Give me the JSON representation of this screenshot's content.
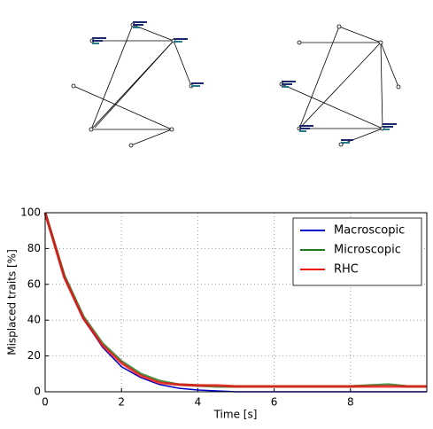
{
  "chart_data": {
    "type": "line",
    "x": [
      0,
      0.5,
      1,
      1.5,
      2,
      2.5,
      3,
      3.5,
      4,
      4.5,
      5,
      5.5,
      6,
      6.5,
      7,
      7.5,
      8,
      8.5,
      9,
      9.5,
      10
    ],
    "series": [
      {
        "name": "Macroscopic",
        "color": "#0000cc",
        "values": [
          100,
          64,
          41,
          25,
          14,
          8,
          4,
          2,
          1,
          0.5,
          0,
          0,
          0,
          0,
          0,
          0,
          0,
          0,
          0,
          0,
          0
        ]
      },
      {
        "name": "Microscopic",
        "color": "#1e7b1e",
        "values": [
          100,
          65,
          42,
          27,
          17,
          10,
          6,
          4,
          3.5,
          3,
          3,
          3,
          3,
          3,
          3,
          3,
          3,
          3.5,
          4,
          3,
          3
        ]
      },
      {
        "name": "RHC",
        "color": "#ee1111",
        "values": [
          100,
          64,
          41,
          26,
          16,
          9,
          5,
          4,
          3.5,
          3.5,
          3,
          3,
          3,
          3,
          3,
          3,
          3,
          3,
          3,
          3,
          3
        ]
      }
    ],
    "xlabel": "Time [s]",
    "ylabel": "Misplaced traits [%]",
    "xlim": [
      0,
      10
    ],
    "ylim": [
      0,
      100
    ],
    "xticks": [
      0,
      2,
      4,
      6,
      8
    ],
    "yticks": [
      0,
      20,
      40,
      60,
      80,
      100
    ],
    "grid": true,
    "legend": "upper right"
  }
}
